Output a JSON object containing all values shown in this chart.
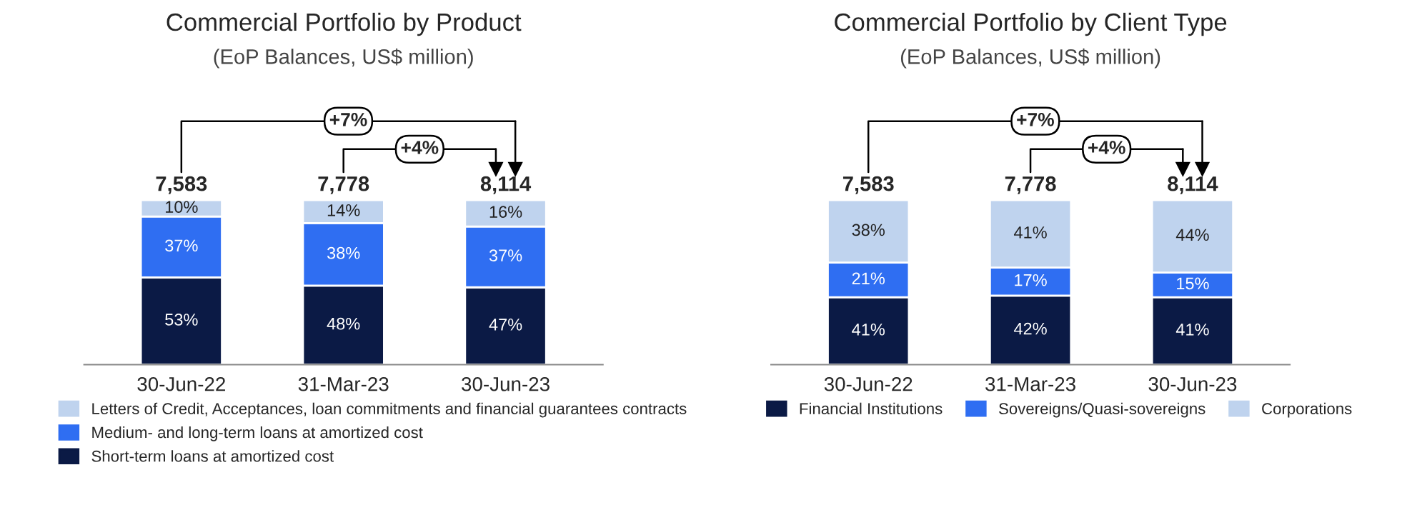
{
  "chart_data": [
    {
      "type": "bar",
      "title": "Commercial Portfolio by Product",
      "subtitle": "(EoP Balances, US$ million)",
      "stacked": true,
      "legend": "bottom",
      "categories": [
        "30-Jun-22",
        "31-Mar-23",
        "30-Jun-23"
      ],
      "series": [
        {
          "name": "Short-term loans at amortized cost",
          "color": "#0b1a45",
          "values": [
            53,
            48,
            47
          ],
          "value_labels": [
            "53%",
            "48%",
            "47%"
          ]
        },
        {
          "name": "Medium- and long-term loans at amortized cost",
          "color": "#2f6ef2",
          "values": [
            37,
            38,
            37
          ],
          "value_labels": [
            "37%",
            "38%",
            "37%"
          ]
        },
        {
          "name": "Letters of Credit, Acceptances, loan commitments and financial guarantees contracts",
          "color": "#bfd3ee",
          "values": [
            10,
            14,
            16
          ],
          "value_labels": [
            "10%",
            "14%",
            "16%"
          ]
        }
      ],
      "annotations": [
        {
          "text": "7,583",
          "x": "30-Jun-22",
          "y": 100
        },
        {
          "text": "7,778",
          "x": "31-Mar-23",
          "y": 100
        },
        {
          "text": "8,114",
          "x": "30-Jun-23",
          "y": 100
        },
        "+7%",
        "+4%"
      ]
    },
    {
      "type": "bar",
      "title": "Commercial Portfolio by Client Type",
      "subtitle": "(EoP Balances, US$ million)",
      "stacked": true,
      "legend": "bottom",
      "categories": [
        "30-Jun-22",
        "31-Mar-23",
        "30-Jun-23"
      ],
      "series": [
        {
          "name": "Financial Institutions",
          "color": "#0b1a45",
          "values": [
            41,
            42,
            41
          ],
          "value_labels": [
            "41%",
            "42%",
            "41%"
          ]
        },
        {
          "name": "Sovereigns/Quasi-sovereigns",
          "color": "#2f6ef2",
          "values": [
            21,
            17,
            15
          ],
          "value_labels": [
            "21%",
            "17%",
            "15%"
          ]
        },
        {
          "name": "Corporations",
          "color": "#bfd3ee",
          "values": [
            38,
            41,
            44
          ],
          "value_labels": [
            "38%",
            "41%",
            "44%"
          ]
        }
      ],
      "annotations": [
        {
          "text": "7,583",
          "x": "30-Jun-22",
          "y": 100
        },
        {
          "text": "7,778",
          "x": "31-Mar-23",
          "y": 100
        },
        {
          "text": "8,114",
          "x": "30-Jun-23",
          "y": 100
        },
        "+7%",
        "+4%"
      ]
    }
  ]
}
